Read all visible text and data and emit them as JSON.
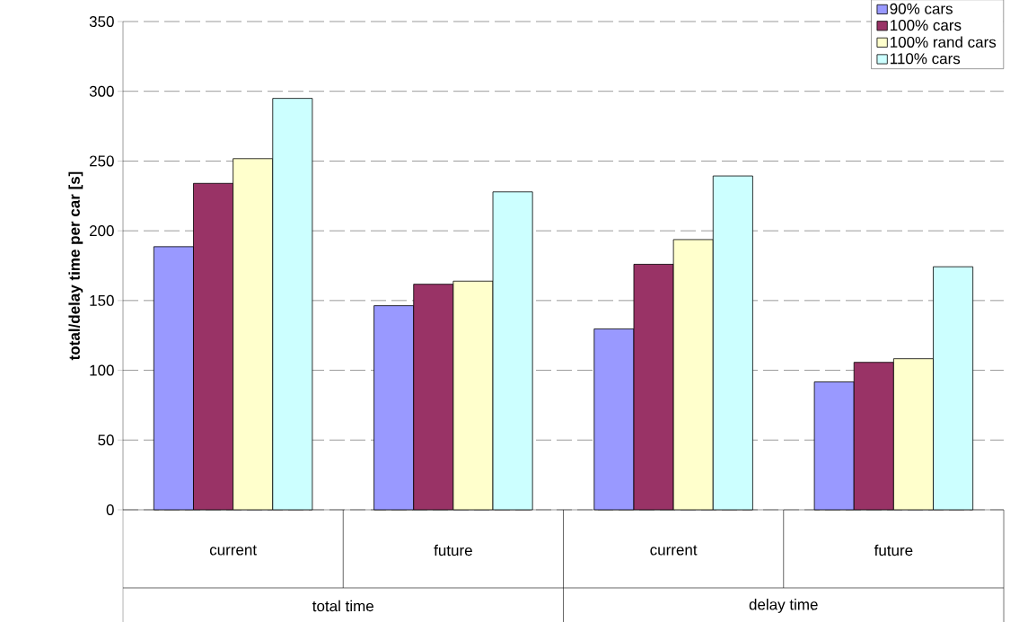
{
  "chart_data": {
    "type": "bar",
    "ylabel": "total/delay time per car [s]",
    "categories": [
      "current",
      "future",
      "current",
      "future"
    ],
    "annotations": [
      "total time",
      "delay time"
    ],
    "series": [
      {
        "name": "90% cars",
        "color": "#9999ff",
        "values": [
          188.6,
          146.3,
          129.7,
          91.7
        ]
      },
      {
        "name": "100% cars",
        "color": "#993366",
        "values": [
          234,
          161.7,
          176,
          105.7
        ]
      },
      {
        "name": "100% rand cars",
        "color": "#ffffcc",
        "values": [
          251.7,
          163.9,
          193.7,
          108.3
        ]
      },
      {
        "name": "110% cars",
        "color": "#ccffff",
        "values": [
          294.9,
          227.9,
          239.3,
          174.2
        ]
      }
    ],
    "ylim": [
      0,
      350
    ],
    "yticks": [
      0,
      50,
      100,
      150,
      200,
      250,
      300,
      350
    ],
    "grid": "y",
    "legend": "top right"
  }
}
